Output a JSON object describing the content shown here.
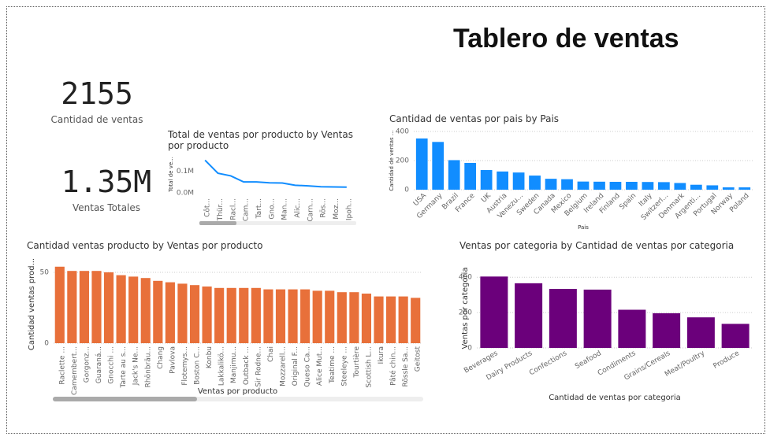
{
  "title": "Tablero de ventas",
  "cards": [
    {
      "value": "2155",
      "label": "Cantidad de ventas"
    },
    {
      "value": "1.35M",
      "label": "Ventas Totales"
    }
  ],
  "chart_data": [
    {
      "type": "line",
      "title": "Total de ventas por producto by Ventas por producto",
      "y_label": "Total de ve...",
      "color": "#118dff",
      "categories": [
        "Côt...",
        "Thür...",
        "Racl...",
        "Cam...",
        "Tart...",
        "Gno...",
        "Man...",
        "Alic...",
        "Carn...",
        "Rös...",
        "Moz...",
        "Ipoh..."
      ],
      "values": [
        150000,
        90000,
        78000,
        50000,
        50000,
        46000,
        45000,
        35000,
        32000,
        28000,
        27000,
        26000
      ],
      "ylim": [
        0,
        170000
      ],
      "yticks": [
        {
          "value": 0,
          "label": "0.0M"
        },
        {
          "value": 100000,
          "label": "0.1M"
        }
      ],
      "grid": false
    },
    {
      "type": "bar",
      "title": "Cantidad de ventas por pais by Pais",
      "x_label": "Pais",
      "y_label": "Cantidad de ventas ...",
      "color": "#118dff",
      "categories": [
        "USA",
        "Germany",
        "Brazil",
        "France",
        "UK",
        "Austria",
        "Venezu...",
        "Sweden",
        "Canada",
        "Mexico",
        "Belgium",
        "Ireland",
        "Finland",
        "Spain",
        "Italy",
        "Switzerl...",
        "Denmark",
        "Argenti...",
        "Portugal",
        "Norway",
        "Poland"
      ],
      "values": [
        352,
        328,
        203,
        184,
        135,
        125,
        118,
        97,
        75,
        72,
        56,
        55,
        54,
        54,
        53,
        52,
        46,
        34,
        30,
        16,
        16
      ],
      "ylim": [
        0,
        400
      ],
      "yticks": [
        0,
        200,
        400
      ],
      "grid": true
    },
    {
      "type": "bar",
      "title": "Cantidad ventas producto by Ventas por producto",
      "x_label": "Ventas por producto",
      "y_label": "Cantidad ventas prod...",
      "color": "#e8703a",
      "categories": [
        "Raclette ...",
        "Camembert...",
        "Gorgonz...",
        "Guaraná...",
        "Gnocchi ...",
        "Tarte au s...",
        "Jack's Ne...",
        "Rhönbräu...",
        "Chang",
        "Pavlova",
        "Flotemys...",
        "Boston C...",
        "Konbu",
        "Lakkalikö...",
        "Manjimu...",
        "Outback ...",
        "Sir Rodne...",
        "Chai",
        "Mozzarell...",
        "Original F...",
        "Queso Ca...",
        "Alice Mut...",
        "Teatime ...",
        "Steeleye ...",
        "Tourtière",
        "Scottish L...",
        "Ikura",
        "Pâté chin...",
        "Rössle Sa...",
        "Geitost"
      ],
      "values": [
        54,
        51,
        51,
        51,
        50,
        48,
        47,
        46,
        44,
        43,
        42,
        41,
        40,
        39,
        39,
        39,
        39,
        38,
        38,
        38,
        38,
        37,
        37,
        36,
        36,
        35,
        33,
        33,
        33,
        32
      ],
      "ylim": [
        0,
        55
      ],
      "yticks": [
        0,
        50
      ],
      "grid": true
    },
    {
      "type": "bar",
      "title": "Ventas por categoria by Cantidad de ventas por categoria",
      "x_label": "Cantidad de ventas por categoria",
      "y_label": "Ventas por categoria",
      "color": "#6b007b",
      "categories": [
        "Beverages",
        "Dairy Products",
        "Confections",
        "Seafood",
        "Condiments",
        "Grains/Cereals",
        "Meat/Poultry",
        "Produce"
      ],
      "values": [
        404,
        366,
        334,
        330,
        216,
        196,
        173,
        136
      ],
      "ylim": [
        0,
        450
      ],
      "yticks": [
        0,
        200,
        400
      ],
      "grid": true
    }
  ]
}
